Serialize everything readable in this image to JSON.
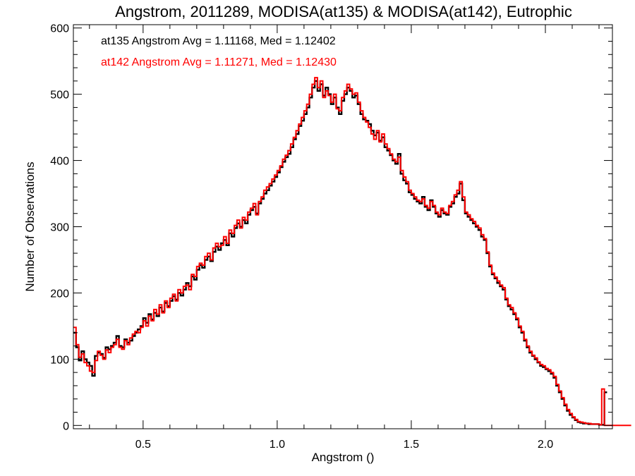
{
  "chart_data": {
    "type": "line",
    "step": true,
    "title": "Angstrom, 2011289, MODISA(at135) & MODISA(at142), Eutrophic",
    "xlabel": "Angstrom ()",
    "ylabel": "Number of Observations",
    "xlim": [
      0.24,
      2.25
    ],
    "ylim": [
      -5,
      605
    ],
    "x_ticks": [
      0.5,
      1.0,
      1.5,
      2.0
    ],
    "x_tick_labels": [
      "0.5",
      "1.0",
      "1.5",
      "2.0"
    ],
    "y_ticks": [
      0,
      100,
      200,
      300,
      400,
      500,
      600
    ],
    "y_tick_labels": [
      "0",
      "100",
      "200",
      "300",
      "400",
      "500",
      "600"
    ],
    "grid": false,
    "bin_width": 0.01,
    "x_start": 0.24,
    "annotations": [
      {
        "text": "at135 Angstrom Avg = 1.11168, Med = 1.12402",
        "color": "#000000"
      },
      {
        "text": "at142 Angstrom Avg = 1.11271, Med = 1.12430",
        "color": "#ff0000"
      }
    ],
    "series": [
      {
        "name": "at135",
        "color": "#000000",
        "values": [
          140,
          118,
          98,
          112,
          100,
          95,
          90,
          75,
          105,
          110,
          108,
          102,
          118,
          115,
          120,
          125,
          135,
          120,
          118,
          130,
          125,
          128,
          135,
          140,
          145,
          150,
          162,
          155,
          168,
          160,
          170,
          165,
          178,
          172,
          185,
          180,
          188,
          195,
          190,
          200,
          196,
          205,
          215,
          210,
          225,
          220,
          235,
          242,
          238,
          250,
          255,
          248,
          262,
          270,
          265,
          275,
          280,
          272,
          290,
          285,
          298,
          305,
          300,
          310,
          305,
          318,
          325,
          330,
          320,
          335,
          342,
          350,
          355,
          362,
          368,
          375,
          382,
          390,
          398,
          405,
          410,
          420,
          432,
          440,
          452,
          460,
          470,
          480,
          495,
          510,
          520,
          505,
          515,
          498,
          510,
          500,
          485,
          495,
          480,
          470,
          490,
          500,
          510,
          505,
          495,
          498,
          485,
          470,
          462,
          460,
          455,
          445,
          438,
          442,
          430,
          435,
          420,
          415,
          408,
          400,
          395,
          410,
          380,
          370,
          365,
          352,
          348,
          342,
          338,
          335,
          345,
          330,
          325,
          340,
          330,
          320,
          315,
          325,
          320,
          318,
          330,
          335,
          345,
          350,
          365,
          340,
          320,
          315,
          310,
          305,
          300,
          295,
          285,
          280,
          260,
          240,
          228,
          222,
          215,
          210,
          205,
          190,
          180,
          175,
          168,
          160,
          148,
          140,
          128,
          118,
          110,
          105,
          100,
          95,
          90,
          88,
          85,
          82,
          78,
          72,
          60,
          50,
          40,
          30,
          22,
          16,
          12,
          8,
          5,
          4,
          3,
          3,
          2,
          2,
          2,
          2,
          1,
          1,
          50
        ]
      },
      {
        "name": "at142",
        "color": "#ff0000",
        "values": [
          148,
          122,
          103,
          108,
          95,
          90,
          82,
          80,
          98,
          112,
          106,
          100,
          114,
          110,
          118,
          122,
          130,
          118,
          115,
          128,
          122,
          132,
          138,
          142,
          140,
          148,
          158,
          150,
          165,
          158,
          175,
          168,
          182,
          170,
          188,
          178,
          192,
          198,
          188,
          205,
          200,
          210,
          212,
          205,
          228,
          225,
          240,
          245,
          242,
          255,
          260,
          250,
          268,
          275,
          270,
          272,
          285,
          275,
          295,
          290,
          302,
          310,
          298,
          314,
          310,
          322,
          328,
          335,
          318,
          338,
          345,
          355,
          360,
          365,
          372,
          378,
          385,
          392,
          402,
          408,
          415,
          425,
          435,
          445,
          455,
          465,
          475,
          485,
          500,
          515,
          525,
          510,
          520,
          495,
          505,
          498,
          488,
          500,
          478,
          475,
          495,
          505,
          515,
          508,
          500,
          502,
          488,
          475,
          465,
          458,
          450,
          440,
          432,
          445,
          428,
          440,
          425,
          418,
          410,
          402,
          398,
          405,
          385,
          375,
          368,
          355,
          350,
          345,
          340,
          338,
          342,
          332,
          328,
          338,
          332,
          322,
          318,
          328,
          322,
          320,
          332,
          338,
          348,
          355,
          368,
          345,
          322,
          318,
          312,
          308,
          302,
          298,
          288,
          282,
          262,
          242,
          230,
          224,
          218,
          212,
          208,
          192,
          182,
          178,
          170,
          162,
          150,
          142,
          130,
          120,
          112,
          106,
          102,
          96,
          92,
          90,
          86,
          84,
          80,
          74,
          62,
          52,
          42,
          32,
          24,
          18,
          13,
          9,
          6,
          5,
          4,
          3,
          3,
          2,
          2,
          2,
          1,
          55,
          0,
          0,
          0,
          0,
          0,
          0,
          0,
          0,
          0,
          0
        ]
      }
    ]
  }
}
